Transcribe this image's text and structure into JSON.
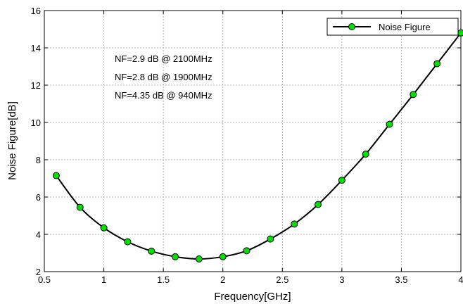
{
  "chart_data": {
    "type": "line",
    "xlabel": "Frequency[GHz]",
    "ylabel": "Noise Figure[dB]",
    "xlim": [
      0.5,
      4
    ],
    "ylim": [
      2,
      16
    ],
    "xticks": [
      0.5,
      1,
      1.5,
      2,
      2.5,
      3,
      3.5,
      4
    ],
    "yticks": [
      2,
      4,
      6,
      8,
      10,
      12,
      14,
      16
    ],
    "grid": true,
    "legend_position": "top-right",
    "annotations": [
      "NF=2.9 dB @ 2100MHz",
      "NF=2.8 dB @ 1900MHz",
      "NF=4.35 dB @ 940MHz"
    ],
    "series": [
      {
        "name": "Noise Figure",
        "color": "#000000",
        "marker_color": "#00e000",
        "x": [
          0.6,
          0.8,
          1.0,
          1.2,
          1.4,
          1.6,
          1.8,
          2.0,
          2.2,
          2.4,
          2.6,
          2.8,
          3.0,
          3.2,
          3.4,
          3.6,
          3.8,
          4.0
        ],
        "y": [
          7.15,
          5.45,
          4.35,
          3.6,
          3.1,
          2.8,
          2.68,
          2.8,
          3.12,
          3.75,
          4.55,
          5.6,
          6.9,
          8.3,
          9.9,
          11.5,
          13.15,
          14.8
        ]
      }
    ]
  }
}
